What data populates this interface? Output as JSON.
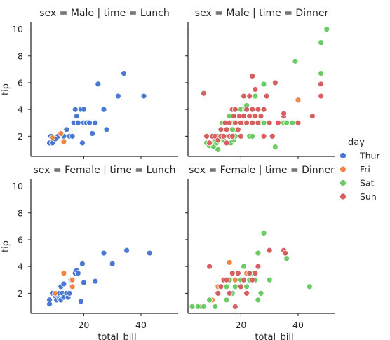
{
  "chart_data": {
    "type": "scatter",
    "xlabel": "total_bill",
    "ylabel": "tip",
    "xlim": [
      1.5,
      53
    ],
    "ylim": [
      0.5,
      10.5
    ],
    "xticks": [
      20,
      40
    ],
    "yticks": [
      2,
      4,
      6,
      8,
      10
    ],
    "grid": false,
    "legend": {
      "title": "day",
      "placement": "right",
      "entries": [
        {
          "label": "Thur",
          "color": "#4878d0"
        },
        {
          "label": "Fri",
          "color": "#ee854a"
        },
        {
          "label": "Sat",
          "color": "#6acc64"
        },
        {
          "label": "Sun",
          "color": "#d65f5f"
        }
      ]
    },
    "panels": [
      {
        "title": "sex = Male | time = Lunch",
        "points": {
          "Thur": [
            [
              8,
              1.5
            ],
            [
              9,
              1.5
            ],
            [
              10,
              1.8
            ],
            [
              11,
              2.0
            ],
            [
              12,
              2.2
            ],
            [
              13,
              2.0
            ],
            [
              14,
              2.5
            ],
            [
              15,
              2.0
            ],
            [
              16,
              2.0
            ],
            [
              16.5,
              3.0
            ],
            [
              17,
              4.0
            ],
            [
              17.5,
              3.5
            ],
            [
              18,
              3.0
            ],
            [
              19,
              4.0
            ],
            [
              19.5,
              1.5
            ],
            [
              20,
              4.0
            ],
            [
              20,
              3.0
            ],
            [
              21,
              3.0
            ],
            [
              22,
              3.0
            ],
            [
              23,
              2.2
            ],
            [
              24,
              3.0
            ],
            [
              25,
              5.9
            ],
            [
              27,
              4.0
            ],
            [
              28,
              2.5
            ],
            [
              32,
              5.0
            ],
            [
              34,
              6.7
            ],
            [
              41,
              5.0
            ],
            [
              8.5,
              2.0
            ],
            [
              10,
              1.8
            ]
          ],
          "Fri": [
            [
              9,
              1.9
            ],
            [
              12,
              2.2
            ],
            [
              13,
              1.6
            ]
          ],
          "Sat": [],
          "Sun": []
        }
      },
      {
        "title": "sex = Male | time = Dinner",
        "points": {
          "Thur": [],
          "Fri": [
            [
              13,
              2.0
            ],
            [
              14,
              2.5
            ],
            [
              16,
              3.0
            ],
            [
              20,
              3.0
            ],
            [
              24,
              3.5
            ],
            [
              26,
              4.0
            ],
            [
              28,
              3.0
            ],
            [
              40,
              4.7
            ]
          ],
          "Sat": [
            [
              8,
              1.5
            ],
            [
              9,
              1.3
            ],
            [
              10,
              1.5
            ],
            [
              10.5,
              1.2
            ],
            [
              11,
              1.7
            ],
            [
              11.5,
              1.5
            ],
            [
              12,
              2.0
            ],
            [
              12,
              1.0
            ],
            [
              13,
              2.0
            ],
            [
              13.5,
              3.0
            ],
            [
              14,
              1.7
            ],
            [
              14.5,
              2.5
            ],
            [
              15,
              3.0
            ],
            [
              15,
              1.5
            ],
            [
              15.5,
              2.0
            ],
            [
              16,
              2.0
            ],
            [
              16,
              3.5
            ],
            [
              16.5,
              1.5
            ],
            [
              17,
              2.5
            ],
            [
              17,
              3.0
            ],
            [
              17.5,
              1.7
            ],
            [
              18,
              2.0
            ],
            [
              18,
              4.0
            ],
            [
              18.5,
              2.5
            ],
            [
              19,
              3.0
            ],
            [
              19.5,
              3.5
            ],
            [
              20,
              2.0
            ],
            [
              20,
              4.0
            ],
            [
              21,
              3.0
            ],
            [
              21.5,
              4.0
            ],
            [
              22,
              4.3
            ],
            [
              23,
              2.0
            ],
            [
              23,
              3.5
            ],
            [
              24,
              2.0
            ],
            [
              25,
              5.0
            ],
            [
              26,
              3.0
            ],
            [
              27,
              3.0
            ],
            [
              28,
              3.0
            ],
            [
              28,
              5.9
            ],
            [
              30,
              3.0
            ],
            [
              32,
              1.2
            ],
            [
              35,
              3.0
            ],
            [
              36,
              3.0
            ],
            [
              38,
              3.0
            ],
            [
              39,
              7.6
            ],
            [
              45,
              3.5
            ],
            [
              48,
              9.0
            ],
            [
              48,
              6.7
            ],
            [
              50,
              10.0
            ]
          ],
          "Sun": [
            [
              7,
              5.2
            ],
            [
              8,
              2.0
            ],
            [
              9,
              1.5
            ],
            [
              10,
              2.0
            ],
            [
              11,
              2.0
            ],
            [
              12,
              1.7
            ],
            [
              13,
              2.5
            ],
            [
              13,
              2.0
            ],
            [
              14,
              2.0
            ],
            [
              14.5,
              3.0
            ],
            [
              15,
              2.5
            ],
            [
              15,
              1.5
            ],
            [
              16,
              2.0
            ],
            [
              16,
              3.0
            ],
            [
              17,
              2.0
            ],
            [
              17,
              4.0
            ],
            [
              17.5,
              3.5
            ],
            [
              18,
              3.0
            ],
            [
              18,
              4.0
            ],
            [
              19,
              2.5
            ],
            [
              19.5,
              3.5
            ],
            [
              20,
              2.0
            ],
            [
              20,
              3.0
            ],
            [
              21,
              3.5
            ],
            [
              21,
              5.0
            ],
            [
              22,
              3.0
            ],
            [
              22,
              4.0
            ],
            [
              23,
              3.5
            ],
            [
              23,
              5.0
            ],
            [
              24,
              3.0
            ],
            [
              24,
              4.0
            ],
            [
              24,
              6.5
            ],
            [
              25,
              3.5
            ],
            [
              25,
              5.5
            ],
            [
              26,
              3.0
            ],
            [
              26,
              4.0
            ],
            [
              27,
              3.5
            ],
            [
              28,
              2.0
            ],
            [
              28,
              4.0
            ],
            [
              29,
              5.0
            ],
            [
              30,
              3.0
            ],
            [
              31,
              2.0
            ],
            [
              32,
              6.0
            ],
            [
              33,
              3.0
            ],
            [
              35,
              3.5
            ],
            [
              35,
              3.7
            ],
            [
              40,
              3.0
            ],
            [
              45,
              3.5
            ],
            [
              48,
              5.0
            ],
            [
              48,
              5.9
            ]
          ]
        }
      },
      {
        "title": "sex = Female | time = Lunch",
        "points": {
          "Thur": [
            [
              8,
              1.5
            ],
            [
              8,
              1.2
            ],
            [
              9,
              2.0
            ],
            [
              10,
              1.8
            ],
            [
              10.5,
              1.5
            ],
            [
              11,
              2.0
            ],
            [
              11.5,
              1.6
            ],
            [
              12,
              1.5
            ],
            [
              12,
              2.5
            ],
            [
              12.5,
              2.0
            ],
            [
              13,
              1.7
            ],
            [
              13,
              2.7
            ],
            [
              14,
              2.0
            ],
            [
              14.5,
              1.7
            ],
            [
              15,
              2.0
            ],
            [
              15.5,
              3.0
            ],
            [
              16,
              3.0
            ],
            [
              17,
              3.5
            ],
            [
              17.5,
              3.7
            ],
            [
              18,
              3.5
            ],
            [
              19,
              1.4
            ],
            [
              19.5,
              4.2
            ],
            [
              20,
              2.8
            ],
            [
              24,
              2.9
            ],
            [
              27,
              5.0
            ],
            [
              30,
              4.2
            ],
            [
              35,
              5.2
            ],
            [
              43,
              5.0
            ]
          ],
          "Fri": [
            [
              10,
              2.0
            ],
            [
              13,
              3.5
            ],
            [
              16,
              3.0
            ],
            [
              16,
              2.5
            ]
          ],
          "Sat": [],
          "Sun": []
        }
      },
      {
        "title": "sex = Female | time = Dinner",
        "points": {
          "Thur": [
            [
              18,
              3.0
            ]
          ],
          "Fri": [
            [
              6,
              1.0
            ],
            [
              10,
              1.5
            ],
            [
              12,
              2.5
            ],
            [
              14,
              3.0
            ],
            [
              15,
              2.5
            ],
            [
              16,
              4.3
            ],
            [
              18,
              3.0
            ],
            [
              22,
              3.5
            ]
          ],
          "Sat": [
            [
              3,
              1.0
            ],
            [
              5,
              1.0
            ],
            [
              7,
              1.0
            ],
            [
              9,
              1.5
            ],
            [
              11,
              1.0
            ],
            [
              12,
              2.0
            ],
            [
              13,
              2.5
            ],
            [
              14,
              3.0
            ],
            [
              15,
              1.5
            ],
            [
              15,
              2.5
            ],
            [
              16,
              3.0
            ],
            [
              17,
              2.0
            ],
            [
              18,
              2.5
            ],
            [
              19,
              3.5
            ],
            [
              20,
              3.0
            ],
            [
              21,
              4.0
            ],
            [
              22,
              2.5
            ],
            [
              23,
              3.0
            ],
            [
              24,
              3.5
            ],
            [
              25,
              3.0
            ],
            [
              26,
              5.0
            ],
            [
              26,
              1.5
            ],
            [
              27,
              2.0
            ],
            [
              28,
              6.5
            ],
            [
              30,
              3.0
            ],
            [
              36,
              4.6
            ],
            [
              44,
              2.5
            ]
          ],
          "Sun": [
            [
              9,
              4.0
            ],
            [
              12,
              2.0
            ],
            [
              13,
              2.5
            ],
            [
              14,
              3.0
            ],
            [
              15,
              3.0
            ],
            [
              16,
              2.0
            ],
            [
              17,
              3.5
            ],
            [
              18,
              1.0
            ],
            [
              19,
              3.5
            ],
            [
              20,
              2.5
            ],
            [
              21,
              3.0
            ],
            [
              22,
              2.0
            ],
            [
              23,
              3.5
            ],
            [
              24,
              3.0
            ],
            [
              25,
              3.5
            ],
            [
              26,
              4.0
            ],
            [
              30,
              5.2
            ],
            [
              35,
              5.2
            ],
            [
              35.5,
              5.0
            ]
          ]
        }
      }
    ]
  }
}
